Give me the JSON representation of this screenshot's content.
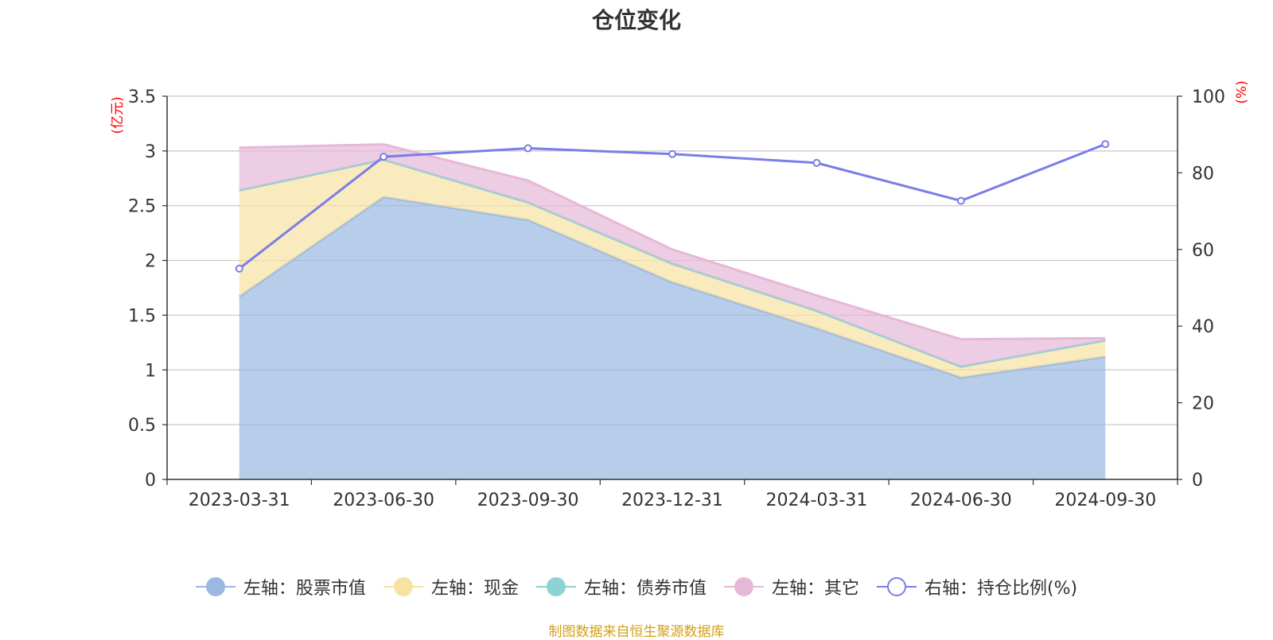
{
  "chart_data": {
    "type": "area",
    "title": "仓位变化",
    "categories": [
      "2023-03-31",
      "2023-06-30",
      "2023-09-30",
      "2023-12-31",
      "2024-03-31",
      "2024-06-30",
      "2024-09-30"
    ],
    "left_axis": {
      "label": "(亿元)",
      "ylim": [
        0,
        3.5
      ],
      "ticks": [
        "0",
        "0.5",
        "1",
        "1.5",
        "2",
        "2.5",
        "3",
        "3.5"
      ]
    },
    "right_axis": {
      "label": "(%)",
      "ylim": [
        0,
        100
      ],
      "ticks": [
        "0",
        "20",
        "40",
        "60",
        "80",
        "100"
      ]
    },
    "series": [
      {
        "name": "左轴：股票市值",
        "axis": "left",
        "stacked": true,
        "color": "#9ab8e0",
        "values": [
          1.67,
          2.58,
          2.37,
          1.8,
          1.38,
          0.93,
          1.12
        ]
      },
      {
        "name": "左轴：现金",
        "axis": "left",
        "stacked": true,
        "color": "#f7e3a1",
        "values": [
          0.97,
          0.34,
          0.16,
          0.17,
          0.16,
          0.1,
          0.15
        ]
      },
      {
        "name": "左轴：债券市值",
        "axis": "left",
        "stacked": true,
        "color": "#8dd3d3",
        "values": [
          0,
          0,
          0,
          0,
          0,
          0,
          0
        ]
      },
      {
        "name": "左轴：其它",
        "axis": "left",
        "stacked": true,
        "color": "#e6b8d8",
        "values": [
          0.39,
          0.14,
          0.2,
          0.13,
          0.14,
          0.25,
          0.02
        ]
      },
      {
        "name": "右轴：持仓比例(%)",
        "axis": "right",
        "type": "line",
        "color": "#7a7de8",
        "values": [
          55.0,
          84.2,
          86.4,
          84.9,
          82.6,
          72.7,
          87.5
        ]
      }
    ]
  },
  "source": "制图数据来自恒生聚源数据库"
}
